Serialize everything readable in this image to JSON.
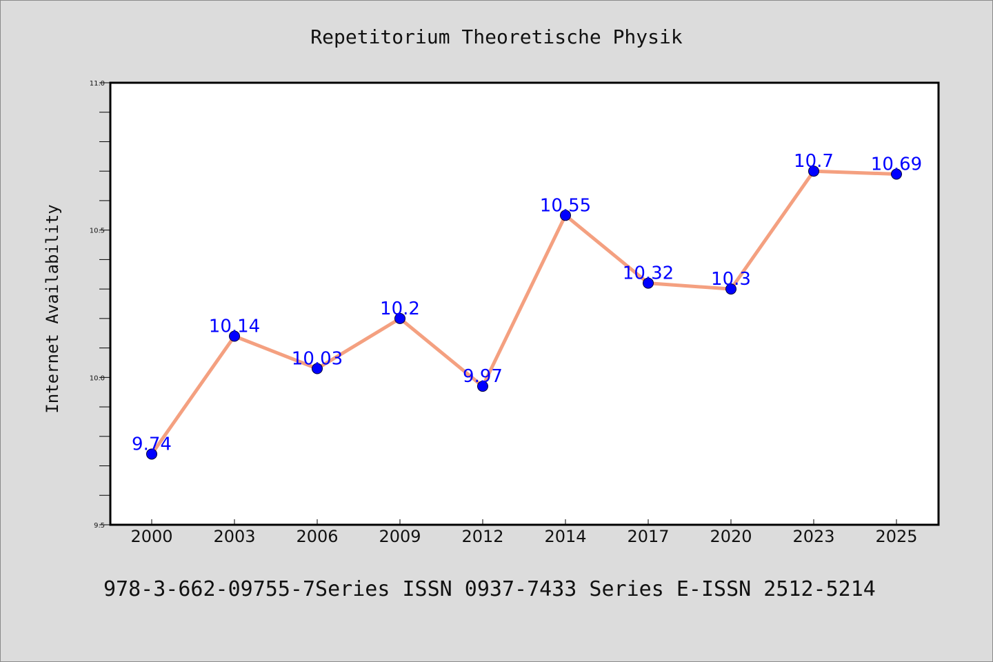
{
  "chart_data": {
    "type": "line",
    "title": "Repetitorium Theoretische Physik",
    "footer": "978-3-662-09755-7Series ISSN 0937-7433 Series E-ISSN 2512-5214",
    "xlabel": "",
    "ylabel": "Internet Availability",
    "categories": [
      "2000",
      "2003",
      "2006",
      "2009",
      "2012",
      "2014",
      "2017",
      "2020",
      "2023",
      "2025"
    ],
    "series": [
      {
        "values": [
          9.74,
          10.14,
          10.03,
          10.2,
          9.97,
          10.55,
          10.32,
          10.3,
          10.7,
          10.69
        ],
        "labels": [
          "9.74",
          "10.14",
          "10.03",
          "10.2",
          "9.97",
          "10.55",
          "10.32",
          "10.3",
          "10.7",
          "10.69"
        ]
      }
    ],
    "ylim": [
      9.5,
      11.0
    ],
    "yticks": [
      "9.5",
      "10.0",
      "10.5",
      "11.0"
    ],
    "grid": false,
    "colors": {
      "line": "#f4a080",
      "marker": "#0000ff",
      "label": "#0000ff",
      "background": "#dcdcdc",
      "plot_bg": "#ffffff"
    }
  }
}
